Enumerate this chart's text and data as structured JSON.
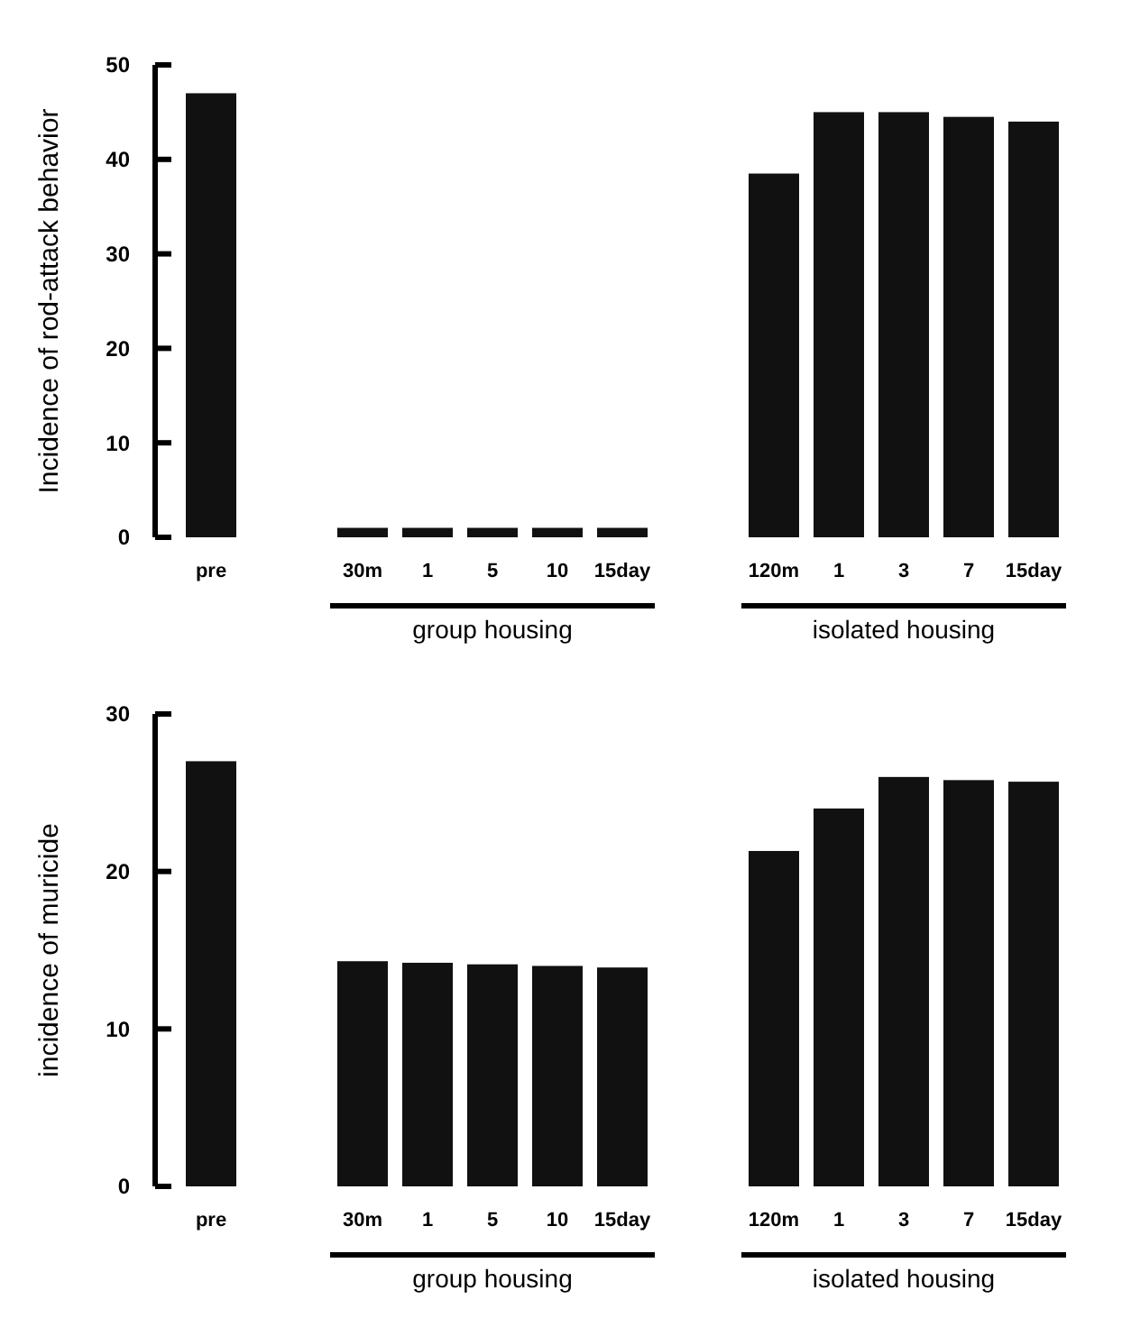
{
  "chart_data": [
    {
      "type": "bar",
      "ylabel": "Incidence of rod-attack behavior",
      "categories": [
        "pre",
        "30m",
        "1",
        "5",
        "10",
        "15day",
        "120m",
        "1",
        "3",
        "7",
        "15day"
      ],
      "values": [
        47,
        1,
        1,
        1,
        1,
        1,
        38.5,
        45,
        45,
        44.5,
        44
      ],
      "color": "#111111",
      "ylim": [
        0,
        50
      ],
      "yticks": [
        0,
        10,
        20,
        30,
        40,
        50
      ],
      "annotations": [
        "group housing",
        "isolated housing"
      ]
    },
    {
      "type": "bar",
      "ylabel": "incidence of muricide",
      "categories": [
        "pre",
        "30m",
        "1",
        "5",
        "10",
        "15day",
        "120m",
        "1",
        "3",
        "7",
        "15day"
      ],
      "values": [
        27,
        14.3,
        14.2,
        14.1,
        14,
        13.9,
        21.3,
        24,
        26,
        25.8,
        25.7
      ],
      "color": "#111111",
      "ylim": [
        0,
        30
      ],
      "yticks": [
        0,
        10,
        20,
        30
      ],
      "annotations": [
        "group housing",
        "isolated housing"
      ]
    }
  ]
}
